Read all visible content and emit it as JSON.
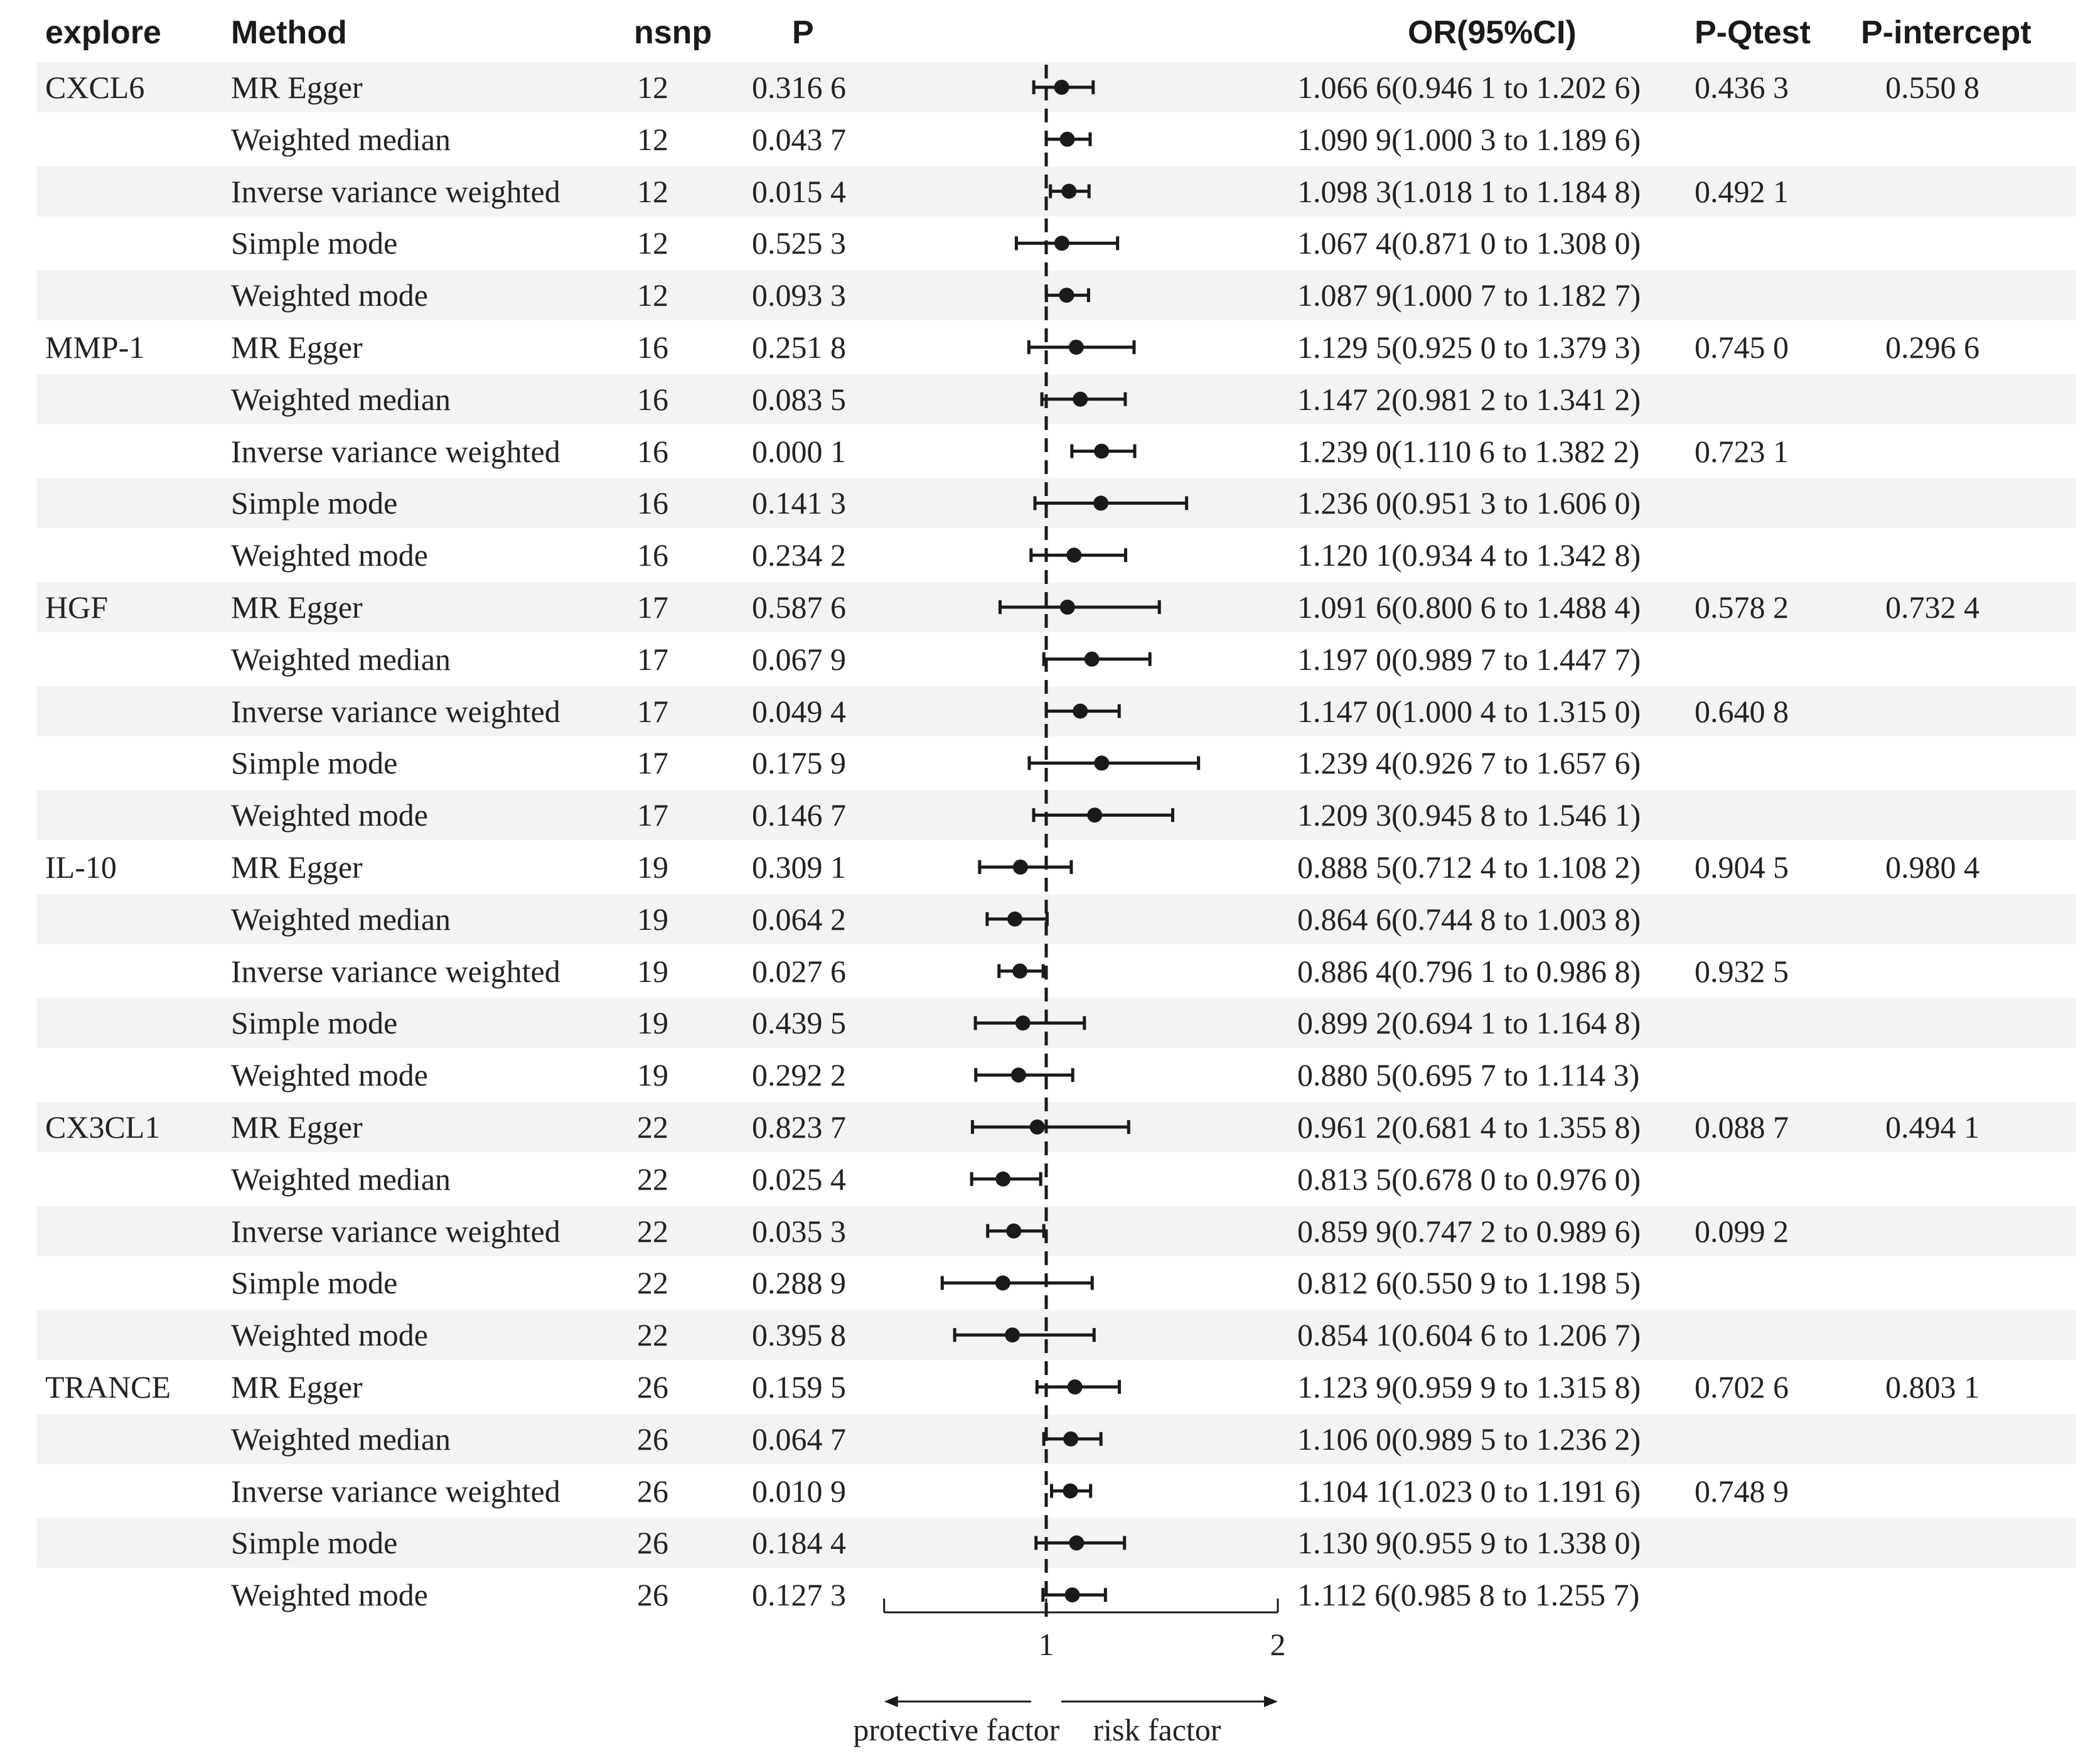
{
  "headers": {
    "explore": "explore",
    "method": "Method",
    "nsnp": "nsnp",
    "p": "P",
    "or_ci": "OR(95%CI)",
    "p_qtest": "P-Qtest",
    "p_intercept": "P-intercept"
  },
  "rows": [
    {
      "explore": "CXCL6",
      "method": "MR Egger",
      "nsnp": "12",
      "p": "0.316 6",
      "or_ci": "1.066 6(0.946 1 to 1.202 6)",
      "p_qtest": "0.436 3",
      "p_intercept": "0.550 8"
    },
    {
      "explore": "",
      "method": "Weighted median",
      "nsnp": "12",
      "p": "0.043 7",
      "or_ci": "1.090 9(1.000 3 to 1.189 6)",
      "p_qtest": "",
      "p_intercept": ""
    },
    {
      "explore": "",
      "method": "Inverse variance weighted",
      "nsnp": "12",
      "p": "0.015 4",
      "or_ci": "1.098 3(1.018 1 to 1.184 8)",
      "p_qtest": "0.492 1",
      "p_intercept": ""
    },
    {
      "explore": "",
      "method": "Simple mode",
      "nsnp": "12",
      "p": "0.525 3",
      "or_ci": "1.067 4(0.871 0 to 1.308 0)",
      "p_qtest": "",
      "p_intercept": ""
    },
    {
      "explore": "",
      "method": "Weighted mode",
      "nsnp": "12",
      "p": "0.093 3",
      "or_ci": "1.087 9(1.000 7 to 1.182 7)",
      "p_qtest": "",
      "p_intercept": ""
    },
    {
      "explore": "MMP-1",
      "method": "MR Egger",
      "nsnp": "16",
      "p": "0.251 8",
      "or_ci": "1.129 5(0.925 0 to 1.379 3)",
      "p_qtest": "0.745 0",
      "p_intercept": "0.296 6"
    },
    {
      "explore": "",
      "method": "Weighted median",
      "nsnp": "16",
      "p": "0.083 5",
      "or_ci": "1.147 2(0.981 2 to 1.341 2)",
      "p_qtest": "",
      "p_intercept": ""
    },
    {
      "explore": "",
      "method": "Inverse variance weighted",
      "nsnp": "16",
      "p": "0.000 1",
      "or_ci": "1.239 0(1.110 6 to 1.382 2)",
      "p_qtest": "0.723 1",
      "p_intercept": ""
    },
    {
      "explore": "",
      "method": "Simple mode",
      "nsnp": "16",
      "p": "0.141 3",
      "or_ci": "1.236 0(0.951 3 to 1.606 0)",
      "p_qtest": "",
      "p_intercept": ""
    },
    {
      "explore": "",
      "method": "Weighted mode",
      "nsnp": "16",
      "p": "0.234 2",
      "or_ci": "1.120 1(0.934 4 to 1.342 8)",
      "p_qtest": "",
      "p_intercept": ""
    },
    {
      "explore": "HGF",
      "method": "MR Egger",
      "nsnp": "17",
      "p": "0.587 6",
      "or_ci": "1.091 6(0.800 6 to 1.488 4)",
      "p_qtest": "0.578 2",
      "p_intercept": "0.732 4"
    },
    {
      "explore": "",
      "method": "Weighted median",
      "nsnp": "17",
      "p": "0.067 9",
      "or_ci": "1.197 0(0.989 7 to 1.447 7)",
      "p_qtest": "",
      "p_intercept": ""
    },
    {
      "explore": "",
      "method": "Inverse variance weighted",
      "nsnp": "17",
      "p": "0.049 4",
      "or_ci": "1.147 0(1.000 4 to 1.315 0)",
      "p_qtest": "0.640 8",
      "p_intercept": ""
    },
    {
      "explore": "",
      "method": "Simple mode",
      "nsnp": "17",
      "p": "0.175 9",
      "or_ci": "1.239 4(0.926 7 to 1.657 6)",
      "p_qtest": "",
      "p_intercept": ""
    },
    {
      "explore": "",
      "method": "Weighted mode",
      "nsnp": "17",
      "p": "0.146 7",
      "or_ci": "1.209 3(0.945 8 to 1.546 1)",
      "p_qtest": "",
      "p_intercept": ""
    },
    {
      "explore": "IL-10",
      "method": "MR Egger",
      "nsnp": "19",
      "p": "0.309 1",
      "or_ci": "0.888 5(0.712 4 to 1.108 2)",
      "p_qtest": "0.904 5",
      "p_intercept": "0.980 4"
    },
    {
      "explore": "",
      "method": "Weighted median",
      "nsnp": "19",
      "p": "0.064 2",
      "or_ci": "0.864 6(0.744 8 to 1.003 8)",
      "p_qtest": "",
      "p_intercept": ""
    },
    {
      "explore": "",
      "method": "Inverse variance weighted",
      "nsnp": "19",
      "p": "0.027 6",
      "or_ci": "0.886 4(0.796 1 to 0.986 8)",
      "p_qtest": "0.932 5",
      "p_intercept": ""
    },
    {
      "explore": "",
      "method": "Simple mode",
      "nsnp": "19",
      "p": "0.439 5",
      "or_ci": "0.899 2(0.694 1 to 1.164 8)",
      "p_qtest": "",
      "p_intercept": ""
    },
    {
      "explore": "",
      "method": "Weighted mode",
      "nsnp": "19",
      "p": "0.292 2",
      "or_ci": "0.880 5(0.695 7 to 1.114 3)",
      "p_qtest": "",
      "p_intercept": ""
    },
    {
      "explore": "CX3CL1",
      "method": "MR Egger",
      "nsnp": "22",
      "p": "0.823 7",
      "or_ci": "0.961 2(0.681 4 to 1.355 8)",
      "p_qtest": "0.088 7",
      "p_intercept": "0.494 1"
    },
    {
      "explore": "",
      "method": "Weighted median",
      "nsnp": "22",
      "p": "0.025 4",
      "or_ci": "0.813 5(0.678 0 to 0.976 0)",
      "p_qtest": "",
      "p_intercept": ""
    },
    {
      "explore": "",
      "method": "Inverse variance weighted",
      "nsnp": "22",
      "p": "0.035 3",
      "or_ci": "0.859 9(0.747 2 to 0.989 6)",
      "p_qtest": "0.099 2",
      "p_intercept": ""
    },
    {
      "explore": "",
      "method": "Simple mode",
      "nsnp": "22",
      "p": "0.288 9",
      "or_ci": "0.812 6(0.550 9 to 1.198 5)",
      "p_qtest": "",
      "p_intercept": ""
    },
    {
      "explore": "",
      "method": "Weighted mode",
      "nsnp": "22",
      "p": "0.395 8",
      "or_ci": "0.854 1(0.604 6 to 1.206 7)",
      "p_qtest": "",
      "p_intercept": ""
    },
    {
      "explore": "TRANCE",
      "method": "MR Egger",
      "nsnp": "26",
      "p": "0.159 5",
      "or_ci": "1.123 9(0.959 9 to 1.315 8)",
      "p_qtest": "0.702 6",
      "p_intercept": "0.803 1"
    },
    {
      "explore": "",
      "method": "Weighted median",
      "nsnp": "26",
      "p": "0.064 7",
      "or_ci": "1.106 0(0.989 5 to 1.236 2)",
      "p_qtest": "",
      "p_intercept": ""
    },
    {
      "explore": "",
      "method": "Inverse variance weighted",
      "nsnp": "26",
      "p": "0.010 9",
      "or_ci": "1.104 1(1.023 0 to 1.191 6)",
      "p_qtest": "0.748 9",
      "p_intercept": ""
    },
    {
      "explore": "",
      "method": "Simple mode",
      "nsnp": "26",
      "p": "0.184 4",
      "or_ci": "1.130 9(0.955 9 to 1.338 0)",
      "p_qtest": "",
      "p_intercept": ""
    },
    {
      "explore": "",
      "method": "Weighted mode",
      "nsnp": "26",
      "p": "0.127 3",
      "or_ci": "1.112 6(0.985 8 to 1.255 7)",
      "p_qtest": "",
      "p_intercept": ""
    }
  ],
  "chart_data": {
    "type": "scatter",
    "subtype": "forest",
    "xlim": [
      0.3,
      2
    ],
    "x_ticks": [
      "1",
      "2"
    ],
    "reference_line": 1,
    "reference_line_style": "dashed",
    "left_arrow_label": "protective factor",
    "right_arrow_label": "risk factor",
    "points": [
      {
        "est": 1.0666,
        "lo": 0.9461,
        "hi": 1.2026
      },
      {
        "est": 1.0909,
        "lo": 1.0003,
        "hi": 1.1896
      },
      {
        "est": 1.0983,
        "lo": 1.0181,
        "hi": 1.1848
      },
      {
        "est": 1.0674,
        "lo": 0.871,
        "hi": 1.308
      },
      {
        "est": 1.0879,
        "lo": 1.0007,
        "hi": 1.1827
      },
      {
        "est": 1.1295,
        "lo": 0.925,
        "hi": 1.3793
      },
      {
        "est": 1.1472,
        "lo": 0.9812,
        "hi": 1.3412
      },
      {
        "est": 1.239,
        "lo": 1.1106,
        "hi": 1.3822
      },
      {
        "est": 1.236,
        "lo": 0.9513,
        "hi": 1.606
      },
      {
        "est": 1.1201,
        "lo": 0.9344,
        "hi": 1.3428
      },
      {
        "est": 1.0916,
        "lo": 0.8006,
        "hi": 1.4884
      },
      {
        "est": 1.197,
        "lo": 0.9897,
        "hi": 1.4477
      },
      {
        "est": 1.147,
        "lo": 1.0004,
        "hi": 1.315
      },
      {
        "est": 1.2394,
        "lo": 0.9267,
        "hi": 1.6576
      },
      {
        "est": 1.2093,
        "lo": 0.9458,
        "hi": 1.5461
      },
      {
        "est": 0.8885,
        "lo": 0.7124,
        "hi": 1.1082
      },
      {
        "est": 0.8646,
        "lo": 0.7448,
        "hi": 1.0038
      },
      {
        "est": 0.8864,
        "lo": 0.7961,
        "hi": 0.9868
      },
      {
        "est": 0.8992,
        "lo": 0.6941,
        "hi": 1.1648
      },
      {
        "est": 0.8805,
        "lo": 0.6957,
        "hi": 1.1143
      },
      {
        "est": 0.9612,
        "lo": 0.6814,
        "hi": 1.3558
      },
      {
        "est": 0.8135,
        "lo": 0.678,
        "hi": 0.976
      },
      {
        "est": 0.8599,
        "lo": 0.7472,
        "hi": 0.9896
      },
      {
        "est": 0.8126,
        "lo": 0.5509,
        "hi": 1.1985
      },
      {
        "est": 0.8541,
        "lo": 0.6046,
        "hi": 1.2067
      },
      {
        "est": 1.1239,
        "lo": 0.9599,
        "hi": 1.3158
      },
      {
        "est": 1.106,
        "lo": 0.9895,
        "hi": 1.2362
      },
      {
        "est": 1.1041,
        "lo": 1.023,
        "hi": 1.1916
      },
      {
        "est": 1.1309,
        "lo": 0.9559,
        "hi": 1.338
      },
      {
        "est": 1.1126,
        "lo": 0.9858,
        "hi": 1.2557
      }
    ]
  }
}
